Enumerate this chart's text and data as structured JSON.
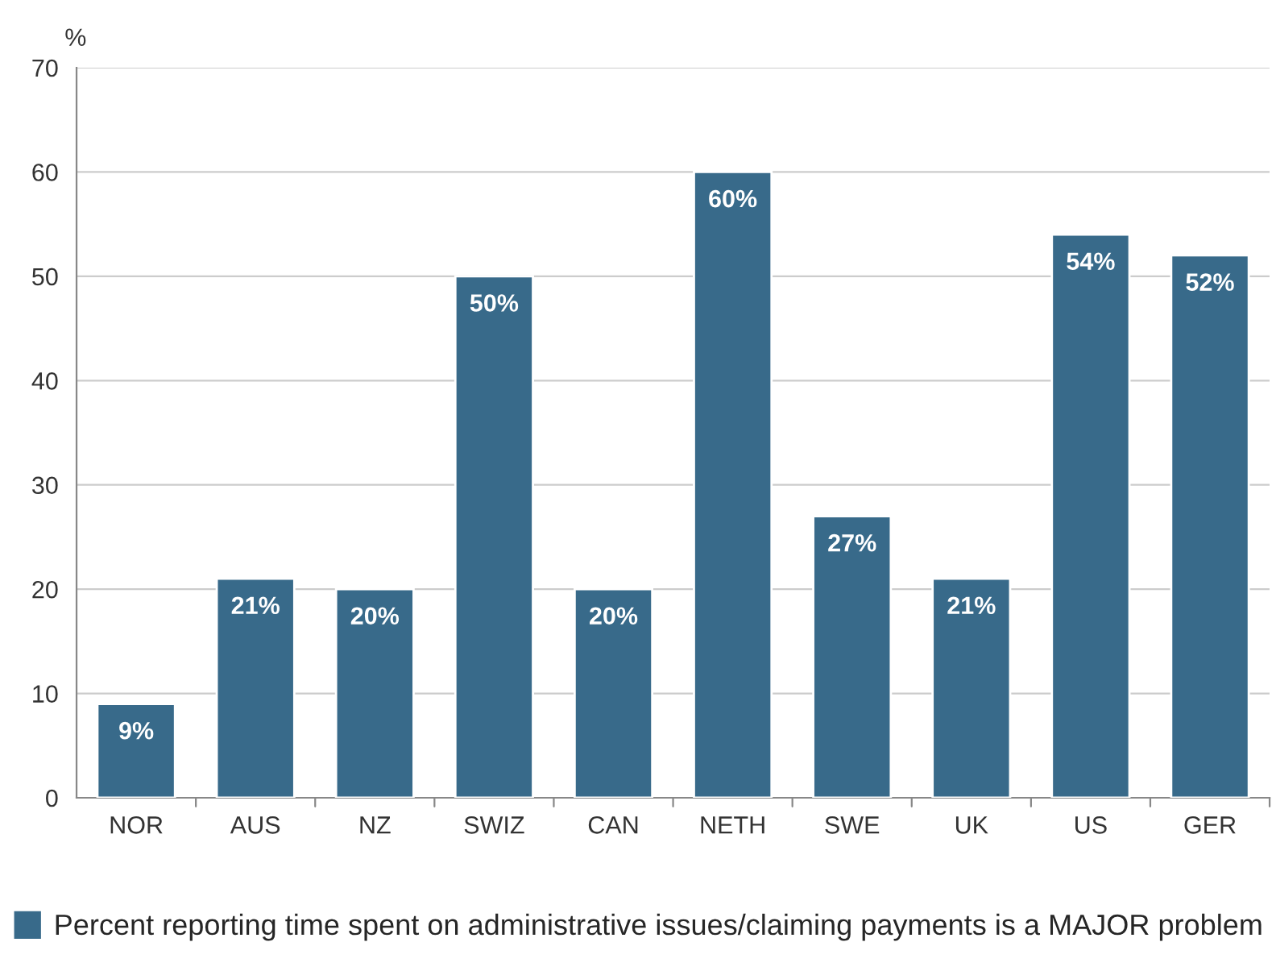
{
  "chart_data": {
    "type": "bar",
    "ylabel": "%",
    "categories": [
      "NOR",
      "AUS",
      "NZ",
      "SWIZ",
      "CAN",
      "NETH",
      "SWE",
      "UK",
      "US",
      "GER"
    ],
    "series": [
      {
        "name": "Percent reporting time spent on administrative issues/claiming payments is a MAJOR problem",
        "color": "#386a8a",
        "values": [
          9,
          21,
          20,
          50,
          20,
          60,
          27,
          21,
          54,
          52
        ],
        "value_labels": [
          "9%",
          "21%",
          "20%",
          "50%",
          "20%",
          "60%",
          "27%",
          "21%",
          "54%",
          "52%"
        ]
      }
    ],
    "ylim": [
      0,
      70
    ],
    "yticks": [
      0,
      10,
      20,
      30,
      40,
      50,
      60,
      70
    ],
    "grid": "y",
    "legend": "bottom"
  }
}
